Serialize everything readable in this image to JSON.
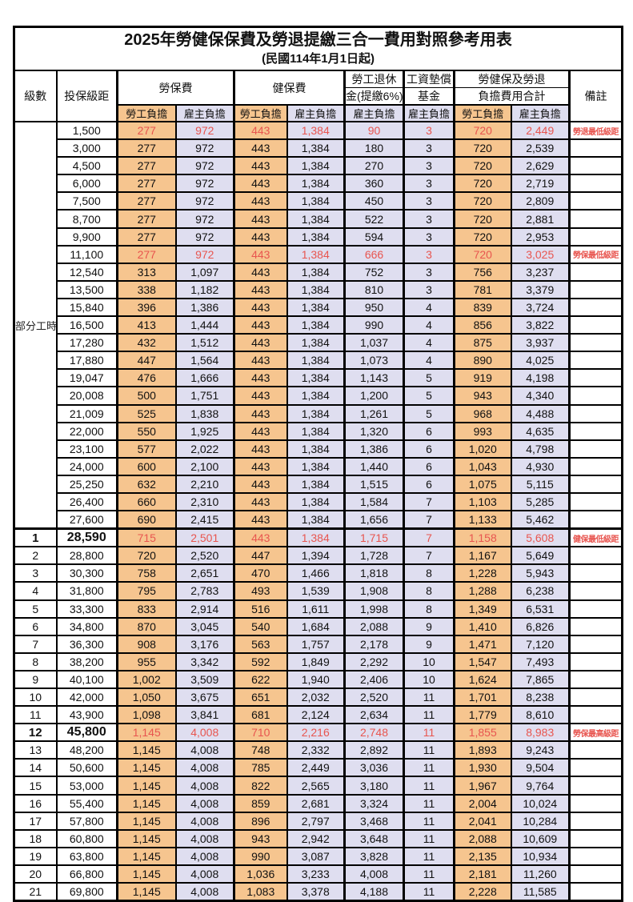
{
  "header": {
    "title": "2025年勞健保保費及勞退提繳三合一費用對照參考用表",
    "subtitle": "(民國114年1月1日起)"
  },
  "columns": {
    "level": "級數",
    "bracket": "投保級距",
    "labor_insurance": "勞保費",
    "health_insurance": "健保費",
    "pension_line1": "勞工退休",
    "pension_line2": "金(提繳6%)",
    "wage_fund_line1": "工資墊償",
    "wage_fund_line2": "基金",
    "total_line1": "勞健保及勞退",
    "total_line2": "負擔費用合計",
    "remark": "備註",
    "employee_share": "勞工負擔",
    "employer_share": "雇主負擔"
  },
  "part_time_label": "部分工時",
  "colors": {
    "employee_bg": "#F6C58F",
    "employer_bg": "#DFDEF0",
    "highlight_red": "#E8554F",
    "border": "#000000",
    "background": "#FFFFFF"
  },
  "rows": [
    {
      "level": "",
      "bracket": "1,500",
      "cells": [
        "277",
        "972",
        "443",
        "1,384",
        "90",
        "3",
        "720",
        "2,449"
      ],
      "remark": "勞退最低級距",
      "red": true
    },
    {
      "level": "",
      "bracket": "3,000",
      "cells": [
        "277",
        "972",
        "443",
        "1,384",
        "180",
        "3",
        "720",
        "2,539"
      ],
      "remark": ""
    },
    {
      "level": "",
      "bracket": "4,500",
      "cells": [
        "277",
        "972",
        "443",
        "1,384",
        "270",
        "3",
        "720",
        "2,629"
      ],
      "remark": ""
    },
    {
      "level": "",
      "bracket": "6,000",
      "cells": [
        "277",
        "972",
        "443",
        "1,384",
        "360",
        "3",
        "720",
        "2,719"
      ],
      "remark": ""
    },
    {
      "level": "",
      "bracket": "7,500",
      "cells": [
        "277",
        "972",
        "443",
        "1,384",
        "450",
        "3",
        "720",
        "2,809"
      ],
      "remark": ""
    },
    {
      "level": "",
      "bracket": "8,700",
      "cells": [
        "277",
        "972",
        "443",
        "1,384",
        "522",
        "3",
        "720",
        "2,881"
      ],
      "remark": ""
    },
    {
      "level": "",
      "bracket": "9,900",
      "cells": [
        "277",
        "972",
        "443",
        "1,384",
        "594",
        "3",
        "720",
        "2,953"
      ],
      "remark": ""
    },
    {
      "level": "",
      "bracket": "11,100",
      "cells": [
        "277",
        "972",
        "443",
        "1,384",
        "666",
        "3",
        "720",
        "3,025"
      ],
      "remark": "勞保最低級距",
      "red": true
    },
    {
      "level": "",
      "bracket": "12,540",
      "cells": [
        "313",
        "1,097",
        "443",
        "1,384",
        "752",
        "3",
        "756",
        "3,237"
      ],
      "remark": ""
    },
    {
      "level": "",
      "bracket": "13,500",
      "cells": [
        "338",
        "1,182",
        "443",
        "1,384",
        "810",
        "3",
        "781",
        "3,379"
      ],
      "remark": ""
    },
    {
      "level": "",
      "bracket": "15,840",
      "cells": [
        "396",
        "1,386",
        "443",
        "1,384",
        "950",
        "4",
        "839",
        "3,724"
      ],
      "remark": ""
    },
    {
      "level": "",
      "bracket": "16,500",
      "cells": [
        "413",
        "1,444",
        "443",
        "1,384",
        "990",
        "4",
        "856",
        "3,822"
      ],
      "remark": ""
    },
    {
      "level": "",
      "bracket": "17,280",
      "cells": [
        "432",
        "1,512",
        "443",
        "1,384",
        "1,037",
        "4",
        "875",
        "3,937"
      ],
      "remark": ""
    },
    {
      "level": "",
      "bracket": "17,880",
      "cells": [
        "447",
        "1,564",
        "443",
        "1,384",
        "1,073",
        "4",
        "890",
        "4,025"
      ],
      "remark": ""
    },
    {
      "level": "",
      "bracket": "19,047",
      "cells": [
        "476",
        "1,666",
        "443",
        "1,384",
        "1,143",
        "5",
        "919",
        "4,198"
      ],
      "remark": ""
    },
    {
      "level": "",
      "bracket": "20,008",
      "cells": [
        "500",
        "1,751",
        "443",
        "1,384",
        "1,200",
        "5",
        "943",
        "4,340"
      ],
      "remark": ""
    },
    {
      "level": "",
      "bracket": "21,009",
      "cells": [
        "525",
        "1,838",
        "443",
        "1,384",
        "1,261",
        "5",
        "968",
        "4,488"
      ],
      "remark": ""
    },
    {
      "level": "",
      "bracket": "22,000",
      "cells": [
        "550",
        "1,925",
        "443",
        "1,384",
        "1,320",
        "6",
        "993",
        "4,635"
      ],
      "remark": ""
    },
    {
      "level": "",
      "bracket": "23,100",
      "cells": [
        "577",
        "2,022",
        "443",
        "1,384",
        "1,386",
        "6",
        "1,020",
        "4,798"
      ],
      "remark": ""
    },
    {
      "level": "",
      "bracket": "24,000",
      "cells": [
        "600",
        "2,100",
        "443",
        "1,384",
        "1,440",
        "6",
        "1,043",
        "4,930"
      ],
      "remark": ""
    },
    {
      "level": "",
      "bracket": "25,250",
      "cells": [
        "632",
        "2,210",
        "443",
        "1,384",
        "1,515",
        "6",
        "1,075",
        "5,115"
      ],
      "remark": ""
    },
    {
      "level": "",
      "bracket": "26,400",
      "cells": [
        "660",
        "2,310",
        "443",
        "1,384",
        "1,584",
        "7",
        "1,103",
        "5,285"
      ],
      "remark": ""
    },
    {
      "level": "",
      "bracket": "27,600",
      "cells": [
        "690",
        "2,415",
        "443",
        "1,384",
        "1,656",
        "7",
        "1,133",
        "5,462"
      ],
      "remark": ""
    },
    {
      "level": "1",
      "bracket": "28,590",
      "cells": [
        "715",
        "2,501",
        "443",
        "1,384",
        "1,715",
        "7",
        "1,158",
        "5,608"
      ],
      "remark": "健保最低級距",
      "red": true,
      "bold": true,
      "sep": true
    },
    {
      "level": "2",
      "bracket": "28,800",
      "cells": [
        "720",
        "2,520",
        "447",
        "1,394",
        "1,728",
        "7",
        "1,167",
        "5,649"
      ],
      "remark": ""
    },
    {
      "level": "3",
      "bracket": "30,300",
      "cells": [
        "758",
        "2,651",
        "470",
        "1,466",
        "1,818",
        "8",
        "1,228",
        "5,943"
      ],
      "remark": ""
    },
    {
      "level": "4",
      "bracket": "31,800",
      "cells": [
        "795",
        "2,783",
        "493",
        "1,539",
        "1,908",
        "8",
        "1,288",
        "6,238"
      ],
      "remark": ""
    },
    {
      "level": "5",
      "bracket": "33,300",
      "cells": [
        "833",
        "2,914",
        "516",
        "1,611",
        "1,998",
        "8",
        "1,349",
        "6,531"
      ],
      "remark": ""
    },
    {
      "level": "6",
      "bracket": "34,800",
      "cells": [
        "870",
        "3,045",
        "540",
        "1,684",
        "2,088",
        "9",
        "1,410",
        "6,826"
      ],
      "remark": ""
    },
    {
      "level": "7",
      "bracket": "36,300",
      "cells": [
        "908",
        "3,176",
        "563",
        "1,757",
        "2,178",
        "9",
        "1,471",
        "7,120"
      ],
      "remark": ""
    },
    {
      "level": "8",
      "bracket": "38,200",
      "cells": [
        "955",
        "3,342",
        "592",
        "1,849",
        "2,292",
        "10",
        "1,547",
        "7,493"
      ],
      "remark": ""
    },
    {
      "level": "9",
      "bracket": "40,100",
      "cells": [
        "1,002",
        "3,509",
        "622",
        "1,940",
        "2,406",
        "10",
        "1,624",
        "7,865"
      ],
      "remark": ""
    },
    {
      "level": "10",
      "bracket": "42,000",
      "cells": [
        "1,050",
        "3,675",
        "651",
        "2,032",
        "2,520",
        "11",
        "1,701",
        "8,238"
      ],
      "remark": ""
    },
    {
      "level": "11",
      "bracket": "43,900",
      "cells": [
        "1,098",
        "3,841",
        "681",
        "2,124",
        "2,634",
        "11",
        "1,779",
        "8,610"
      ],
      "remark": ""
    },
    {
      "level": "12",
      "bracket": "45,800",
      "cells": [
        "1,145",
        "4,008",
        "710",
        "2,216",
        "2,748",
        "11",
        "1,855",
        "8,983"
      ],
      "remark": "勞保最高級距",
      "red": true,
      "bold": true
    },
    {
      "level": "13",
      "bracket": "48,200",
      "cells": [
        "1,145",
        "4,008",
        "748",
        "2,332",
        "2,892",
        "11",
        "1,893",
        "9,243"
      ],
      "remark": ""
    },
    {
      "level": "14",
      "bracket": "50,600",
      "cells": [
        "1,145",
        "4,008",
        "785",
        "2,449",
        "3,036",
        "11",
        "1,930",
        "9,504"
      ],
      "remark": ""
    },
    {
      "level": "15",
      "bracket": "53,000",
      "cells": [
        "1,145",
        "4,008",
        "822",
        "2,565",
        "3,180",
        "11",
        "1,967",
        "9,764"
      ],
      "remark": ""
    },
    {
      "level": "16",
      "bracket": "55,400",
      "cells": [
        "1,145",
        "4,008",
        "859",
        "2,681",
        "3,324",
        "11",
        "2,004",
        "10,024"
      ],
      "remark": ""
    },
    {
      "level": "17",
      "bracket": "57,800",
      "cells": [
        "1,145",
        "4,008",
        "896",
        "2,797",
        "3,468",
        "11",
        "2,041",
        "10,284"
      ],
      "remark": ""
    },
    {
      "level": "18",
      "bracket": "60,800",
      "cells": [
        "1,145",
        "4,008",
        "943",
        "2,942",
        "3,648",
        "11",
        "2,088",
        "10,609"
      ],
      "remark": ""
    },
    {
      "level": "19",
      "bracket": "63,800",
      "cells": [
        "1,145",
        "4,008",
        "990",
        "3,087",
        "3,828",
        "11",
        "2,135",
        "10,934"
      ],
      "remark": ""
    },
    {
      "level": "20",
      "bracket": "66,800",
      "cells": [
        "1,145",
        "4,008",
        "1,036",
        "3,233",
        "4,008",
        "11",
        "2,181",
        "11,260"
      ],
      "remark": ""
    },
    {
      "level": "21",
      "bracket": "69,800",
      "cells": [
        "1,145",
        "4,008",
        "1,083",
        "3,378",
        "4,188",
        "11",
        "2,228",
        "11,585"
      ],
      "remark": ""
    }
  ]
}
